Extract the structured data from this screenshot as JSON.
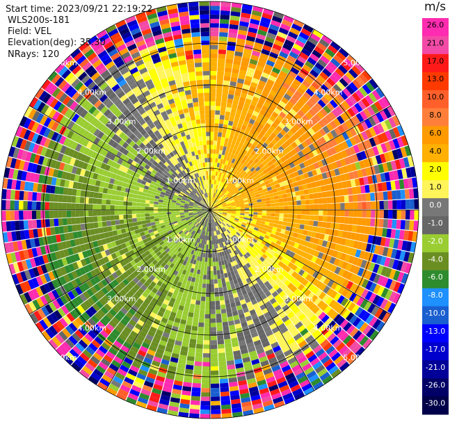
{
  "info": {
    "start_time": "Start time: 2023/09/21 22:19:22",
    "site": "WLS200s-181",
    "field": "Field: VEL",
    "elevation": "Elevation(deg): 35.30",
    "nrays": "NRays: 120"
  },
  "chart_data": {
    "type": "heatmap",
    "projection": "polar PPI",
    "field": "VEL",
    "units": "m/s",
    "rays": 120,
    "max_range_km": 5.0,
    "range_ring_labels": [
      "1.00km",
      "2.00km",
      "3.00km",
      "4.00km",
      "5.00km"
    ],
    "colorbar": {
      "unit_label": "m/s",
      "tick_labels": [
        "26.0",
        "21.0",
        "17.0",
        "13.0",
        "10.0",
        "8.0",
        "6.0",
        "4.0",
        "2.0",
        "1.0",
        "0.0",
        "-1.0",
        "-2.0",
        "-4.0",
        "-6.0",
        "-8.0",
        "-10.0",
        "-13.0",
        "-17.0",
        "-21.0",
        "-26.0",
        "-30.0"
      ],
      "band_colors": [
        "#ff2bb0",
        "#f24aa6",
        "#ff1a1a",
        "#ff3a00",
        "#ff5f2a",
        "#ff7f3a",
        "#ff9a00",
        "#ffb000",
        "#ffff00",
        "#fff45a",
        "#777777",
        "#666666",
        "#9acd32",
        "#6b8e23",
        "#2e8b2e",
        "#1e90ff",
        "#1a5fd0",
        "#0000ff",
        "#0000cc",
        "#000099",
        "#000066",
        "#00004a"
      ]
    },
    "velocity_pattern": {
      "receding_sector_deg": [
        330,
        150
      ],
      "approaching_sector_deg": [
        150,
        330
      ],
      "typical_inner_abs": 2.0,
      "typical_outer_abs": 6.0
    }
  }
}
